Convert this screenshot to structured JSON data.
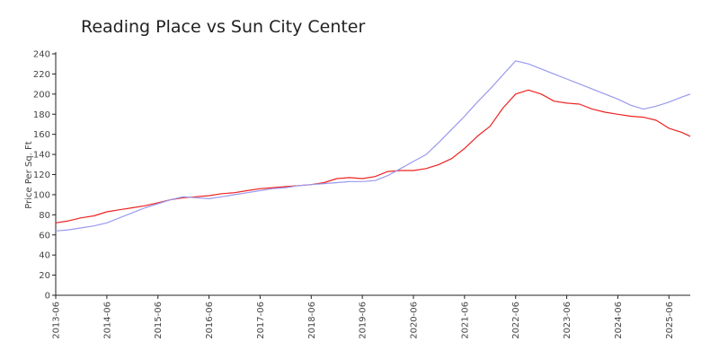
{
  "chart_data": {
    "type": "line",
    "title": "Reading Place vs Sun City Center",
    "xlabel": "",
    "ylabel": "Price Per Sq. Ft",
    "ylim": [
      0,
      240
    ],
    "yticks": [
      0,
      20,
      40,
      60,
      80,
      100,
      120,
      140,
      160,
      180,
      200,
      220,
      240
    ],
    "xlim": [
      "2013-06",
      "2025-11"
    ],
    "xticks": [
      "2013-06",
      "2014-06",
      "2015-06",
      "2016-06",
      "2017-06",
      "2018-06",
      "2019-06",
      "2020-06",
      "2021-06",
      "2022-06",
      "2023-06",
      "2024-06",
      "2025-06"
    ],
    "grid": false,
    "legend": "none",
    "series": [
      {
        "color": "#ee2222",
        "points": [
          [
            "2013-06",
            72
          ],
          [
            "2013-09",
            74
          ],
          [
            "2013-12",
            77
          ],
          [
            "2014-03",
            79
          ],
          [
            "2014-06",
            83
          ],
          [
            "2014-09",
            85
          ],
          [
            "2014-12",
            87
          ],
          [
            "2015-03",
            89
          ],
          [
            "2015-06",
            92
          ],
          [
            "2015-09",
            95
          ],
          [
            "2015-12",
            97
          ],
          [
            "2016-03",
            98
          ],
          [
            "2016-06",
            99
          ],
          [
            "2016-09",
            101
          ],
          [
            "2016-12",
            102
          ],
          [
            "2017-03",
            104
          ],
          [
            "2017-06",
            106
          ],
          [
            "2017-09",
            107
          ],
          [
            "2017-12",
            108
          ],
          [
            "2018-03",
            109
          ],
          [
            "2018-06",
            110
          ],
          [
            "2018-09",
            112
          ],
          [
            "2018-12",
            116
          ],
          [
            "2019-03",
            117
          ],
          [
            "2019-06",
            116
          ],
          [
            "2019-09",
            118
          ],
          [
            "2019-12",
            123
          ],
          [
            "2020-03",
            124
          ],
          [
            "2020-06",
            124
          ],
          [
            "2020-09",
            126
          ],
          [
            "2020-12",
            130
          ],
          [
            "2021-03",
            136
          ],
          [
            "2021-06",
            146
          ],
          [
            "2021-09",
            158
          ],
          [
            "2021-12",
            168
          ],
          [
            "2022-03",
            186
          ],
          [
            "2022-06",
            200
          ],
          [
            "2022-09",
            204
          ],
          [
            "2022-12",
            200
          ],
          [
            "2023-03",
            193
          ],
          [
            "2023-06",
            191
          ],
          [
            "2023-09",
            190
          ],
          [
            "2023-12",
            185
          ],
          [
            "2024-03",
            182
          ],
          [
            "2024-06",
            180
          ],
          [
            "2024-09",
            178
          ],
          [
            "2024-12",
            177
          ],
          [
            "2025-03",
            174
          ],
          [
            "2025-06",
            166
          ],
          [
            "2025-09",
            162
          ],
          [
            "2025-11",
            158
          ]
        ]
      },
      {
        "color": "#9999ee",
        "points": [
          [
            "2013-06",
            64
          ],
          [
            "2013-09",
            65
          ],
          [
            "2013-12",
            67
          ],
          [
            "2014-03",
            69
          ],
          [
            "2014-06",
            72
          ],
          [
            "2014-09",
            77
          ],
          [
            "2014-12",
            82
          ],
          [
            "2015-03",
            87
          ],
          [
            "2015-06",
            91
          ],
          [
            "2015-09",
            95
          ],
          [
            "2015-12",
            98
          ],
          [
            "2016-03",
            97
          ],
          [
            "2016-06",
            96
          ],
          [
            "2016-09",
            98
          ],
          [
            "2016-12",
            100
          ],
          [
            "2017-03",
            102
          ],
          [
            "2017-06",
            104
          ],
          [
            "2017-09",
            106
          ],
          [
            "2017-12",
            107
          ],
          [
            "2018-03",
            109
          ],
          [
            "2018-06",
            110
          ],
          [
            "2018-09",
            111
          ],
          [
            "2018-12",
            112
          ],
          [
            "2019-03",
            113
          ],
          [
            "2019-06",
            113
          ],
          [
            "2019-09",
            114
          ],
          [
            "2019-12",
            119
          ],
          [
            "2020-03",
            126
          ],
          [
            "2020-06",
            133
          ],
          [
            "2020-09",
            140
          ],
          [
            "2020-12",
            152
          ],
          [
            "2021-03",
            165
          ],
          [
            "2021-06",
            178
          ],
          [
            "2021-09",
            192
          ],
          [
            "2021-12",
            205
          ],
          [
            "2022-03",
            219
          ],
          [
            "2022-06",
            233
          ],
          [
            "2022-09",
            230
          ],
          [
            "2022-12",
            225
          ],
          [
            "2023-03",
            220
          ],
          [
            "2023-06",
            215
          ],
          [
            "2023-09",
            210
          ],
          [
            "2023-12",
            205
          ],
          [
            "2024-03",
            200
          ],
          [
            "2024-06",
            195
          ],
          [
            "2024-09",
            189
          ],
          [
            "2024-12",
            185
          ],
          [
            "2025-03",
            188
          ],
          [
            "2025-06",
            192
          ],
          [
            "2025-09",
            197
          ],
          [
            "2025-11",
            200
          ]
        ]
      }
    ]
  }
}
